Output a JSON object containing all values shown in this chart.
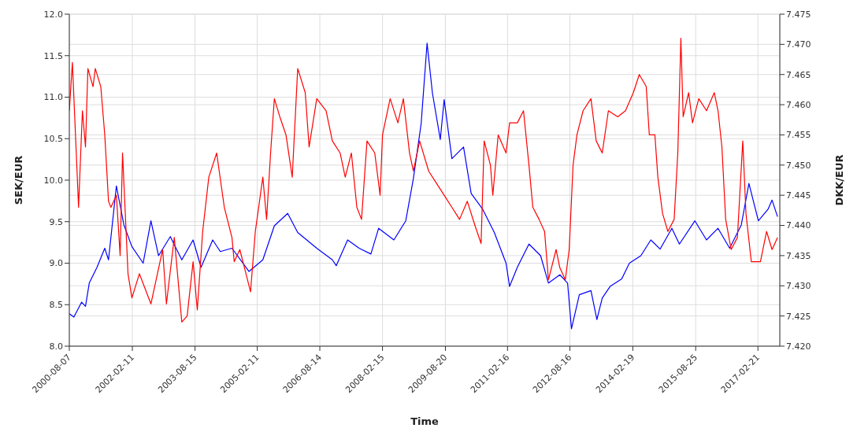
{
  "chart_data": {
    "type": "line",
    "xlabel": "Time",
    "ylabel": "SEK/EUR",
    "y2label": "DKK/EUR",
    "xlim": [
      "2000-08-07",
      "2017-09-01"
    ],
    "xticks": [
      "2000-08-07",
      "2002-02-11",
      "2003-08-15",
      "2005-02-11",
      "2006-08-14",
      "2008-02-15",
      "2009-08-20",
      "2011-02-16",
      "2012-08-16",
      "2014-02-19",
      "2015-08-25",
      "2017-02-21"
    ],
    "ylim": [
      8,
      12
    ],
    "yticks": [
      {
        "value": 8,
        "label": "8.0"
      },
      {
        "value": 8.5,
        "label": "8.5"
      },
      {
        "value": 9,
        "label": "9.0"
      },
      {
        "value": 9.5,
        "label": "9.5"
      },
      {
        "value": 10,
        "label": "10.0"
      },
      {
        "value": 10.5,
        "label": "10.5"
      },
      {
        "value": 11,
        "label": "11.0"
      },
      {
        "value": 11.5,
        "label": "11.5"
      },
      {
        "value": 12,
        "label": "12.0"
      }
    ],
    "y2lim": [
      7.42,
      7.475
    ],
    "y2ticks": [
      {
        "value": 7.42,
        "label": "7.420"
      },
      {
        "value": 7.425,
        "label": "7.425"
      },
      {
        "value": 7.43,
        "label": "7.430"
      },
      {
        "value": 7.435,
        "label": "7.435"
      },
      {
        "value": 7.44,
        "label": "7.440"
      },
      {
        "value": 7.445,
        "label": "7.445"
      },
      {
        "value": 7.45,
        "label": "7.450"
      },
      {
        "value": 7.455,
        "label": "7.455"
      },
      {
        "value": 7.46,
        "label": "7.460"
      },
      {
        "value": 7.465,
        "label": "7.465"
      },
      {
        "value": 7.47,
        "label": "7.470"
      },
      {
        "value": 7.475,
        "label": "7.475"
      }
    ],
    "grid": true,
    "series": [
      {
        "color": "#0000ff",
        "x": [
          "2000-08-07",
          "2000-09-16",
          "2000-11-23",
          "2000-12-27",
          "2001-01-29",
          "2001-04-07",
          "2001-06-14",
          "2001-07-17",
          "2001-09-24",
          "2001-11-29",
          "2002-02-07",
          "2002-05-17",
          "2002-07-24",
          "2002-09-29",
          "2003-01-10",
          "2003-04-21",
          "2003-07-29",
          "2003-10-07",
          "2004-01-17",
          "2004-03-24",
          "2004-07-04",
          "2004-12-01",
          "2005-04-01",
          "2005-07-11",
          "2005-11-05",
          "2006-02-01",
          "2006-07-18",
          "2006-12-02",
          "2007-01-05",
          "2007-04-15",
          "2007-07-25",
          "2007-11-05",
          "2008-01-12",
          "2008-05-25",
          "2008-09-06",
          "2008-11-12",
          "2009-01-19",
          "2009-03-12",
          "2009-04-28",
          "2009-07-06",
          "2009-08-09",
          "2009-10-16",
          "2010-01-26",
          "2010-04-03",
          "2010-07-13",
          "2010-10-23",
          "2011-02-03",
          "2011-03-06",
          "2011-05-13",
          "2011-08-23",
          "2011-12-03",
          "2012-02-10",
          "2012-05-20",
          "2012-07-27",
          "2012-08-30",
          "2012-11-07",
          "2013-02-17",
          "2013-04-10",
          "2013-05-27",
          "2013-08-04",
          "2013-11-14",
          "2014-01-20",
          "2014-05-01",
          "2014-07-27",
          "2014-10-17",
          "2015-01-28",
          "2015-04-04",
          "2015-08-18",
          "2015-11-28",
          "2016-03-08",
          "2016-06-18",
          "2016-09-28",
          "2016-12-04",
          "2017-02-25",
          "2017-05-21",
          "2017-06-25",
          "2017-08-12"
        ],
        "values": [
          8.39,
          8.35,
          8.53,
          8.48,
          8.76,
          8.95,
          9.18,
          9.04,
          9.93,
          9.46,
          9.2,
          9.0,
          9.51,
          9.09,
          9.32,
          9.04,
          9.28,
          8.95,
          9.28,
          9.14,
          9.18,
          8.9,
          9.04,
          9.45,
          9.6,
          9.37,
          9.18,
          9.04,
          8.97,
          9.28,
          9.18,
          9.11,
          9.42,
          9.28,
          9.51,
          10.02,
          10.68,
          11.65,
          11.05,
          10.49,
          10.97,
          10.26,
          10.4,
          9.84,
          9.65,
          9.37,
          9.0,
          8.72,
          8.95,
          9.23,
          9.09,
          8.76,
          8.86,
          8.76,
          8.21,
          8.62,
          8.67,
          8.32,
          8.58,
          8.72,
          8.81,
          9.0,
          9.09,
          9.28,
          9.17,
          9.42,
          9.23,
          9.51,
          9.28,
          9.42,
          9.18,
          9.46,
          9.96,
          9.51,
          9.65,
          9.76,
          9.56
        ]
      },
      {
        "color": "#ff0000",
        "axis": "y2",
        "x": [
          "2000-08-07",
          "2000-09-03",
          "2000-10-07",
          "2000-10-27",
          "2000-11-30",
          "2000-12-27",
          "2001-01-17",
          "2001-03-03",
          "2001-03-23",
          "2001-05-10",
          "2001-06-14",
          "2001-07-17",
          "2001-08-07",
          "2001-09-24",
          "2001-10-27",
          "2001-11-17",
          "2002-01-04",
          "2002-02-07",
          "2002-04-14",
          "2002-07-24",
          "2002-11-04",
          "2002-12-07",
          "2003-02-14",
          "2003-04-21",
          "2003-06-07",
          "2003-07-29",
          "2003-09-04",
          "2003-10-21",
          "2003-12-14",
          "2004-02-21",
          "2004-04-28",
          "2004-07-04",
          "2004-07-24",
          "2004-09-11",
          "2004-11-04",
          "2004-12-14",
          "2005-01-25",
          "2005-04-01",
          "2005-05-04",
          "2005-06-08",
          "2005-07-11",
          "2005-08-28",
          "2005-10-21",
          "2005-12-15",
          "2006-02-01",
          "2006-04-08",
          "2006-05-12",
          "2006-07-18",
          "2006-10-08",
          "2006-12-02",
          "2007-02-08",
          "2007-03-25",
          "2007-05-18",
          "2007-07-05",
          "2007-08-15",
          "2007-10-02",
          "2007-12-09",
          "2008-01-25",
          "2008-02-15",
          "2008-04-22",
          "2008-06-29",
          "2008-08-16",
          "2008-10-09",
          "2008-11-12",
          "2009-01-06",
          "2009-03-26",
          "2009-06-02",
          "2009-08-09",
          "2009-10-16",
          "2009-12-22",
          "2010-02-28",
          "2010-05-06",
          "2010-06-29",
          "2010-07-26",
          "2010-09-19",
          "2010-10-10",
          "2010-11-26",
          "2011-02-03",
          "2011-03-06",
          "2011-05-13",
          "2011-07-06",
          "2011-08-23",
          "2011-09-26",
          "2011-11-20",
          "2012-01-07",
          "2012-02-10",
          "2012-04-17",
          "2012-05-20",
          "2012-07-07",
          "2012-08-10",
          "2012-09-13",
          "2012-10-17",
          "2012-12-10",
          "2013-02-17",
          "2013-04-04",
          "2013-05-27",
          "2013-07-20",
          "2013-10-10",
          "2013-12-17",
          "2014-02-24",
          "2014-04-17",
          "2014-06-17",
          "2014-07-14",
          "2014-09-01",
          "2014-09-27",
          "2014-11-07",
          "2014-12-24",
          "2015-02-17",
          "2015-03-21",
          "2015-04-17",
          "2015-05-07",
          "2015-06-24",
          "2015-07-28",
          "2015-09-21",
          "2015-11-28",
          "2016-02-04",
          "2016-03-08",
          "2016-04-11",
          "2016-05-14",
          "2016-07-01",
          "2016-08-25",
          "2016-10-11",
          "2016-11-08",
          "2016-12-25",
          "2017-02-11",
          "2017-03-15",
          "2017-05-08",
          "2017-06-25",
          "2017-08-12"
        ],
        "values": [
          7.459,
          7.467,
          7.452,
          7.443,
          7.459,
          7.453,
          7.466,
          7.463,
          7.466,
          7.463,
          7.455,
          7.444,
          7.443,
          7.445,
          7.435,
          7.452,
          7.432,
          7.428,
          7.432,
          7.427,
          7.436,
          7.427,
          7.438,
          7.424,
          7.425,
          7.434,
          7.426,
          7.439,
          7.448,
          7.452,
          7.443,
          7.438,
          7.434,
          7.436,
          7.432,
          7.429,
          7.439,
          7.448,
          7.441,
          7.452,
          7.461,
          7.458,
          7.455,
          7.448,
          7.466,
          7.462,
          7.453,
          7.461,
          7.459,
          7.454,
          7.452,
          7.448,
          7.452,
          7.443,
          7.441,
          7.454,
          7.452,
          7.445,
          7.455,
          7.461,
          7.457,
          7.461,
          7.452,
          7.449,
          7.454,
          7.449,
          7.447,
          7.445,
          7.443,
          7.441,
          7.444,
          7.44,
          7.437,
          7.454,
          7.45,
          7.445,
          7.455,
          7.452,
          7.457,
          7.457,
          7.459,
          7.45,
          7.443,
          7.441,
          7.439,
          7.431,
          7.436,
          7.433,
          7.431,
          7.436,
          7.45,
          7.455,
          7.459,
          7.461,
          7.454,
          7.452,
          7.459,
          7.458,
          7.459,
          7.462,
          7.465,
          7.463,
          7.455,
          7.455,
          7.448,
          7.442,
          7.439,
          7.441,
          7.452,
          7.471,
          7.458,
          7.462,
          7.457,
          7.461,
          7.459,
          7.462,
          7.459,
          7.453,
          7.441,
          7.436,
          7.438,
          7.454,
          7.442,
          7.434,
          7.434,
          7.434,
          7.439,
          7.436,
          7.438
        ]
      }
    ]
  }
}
